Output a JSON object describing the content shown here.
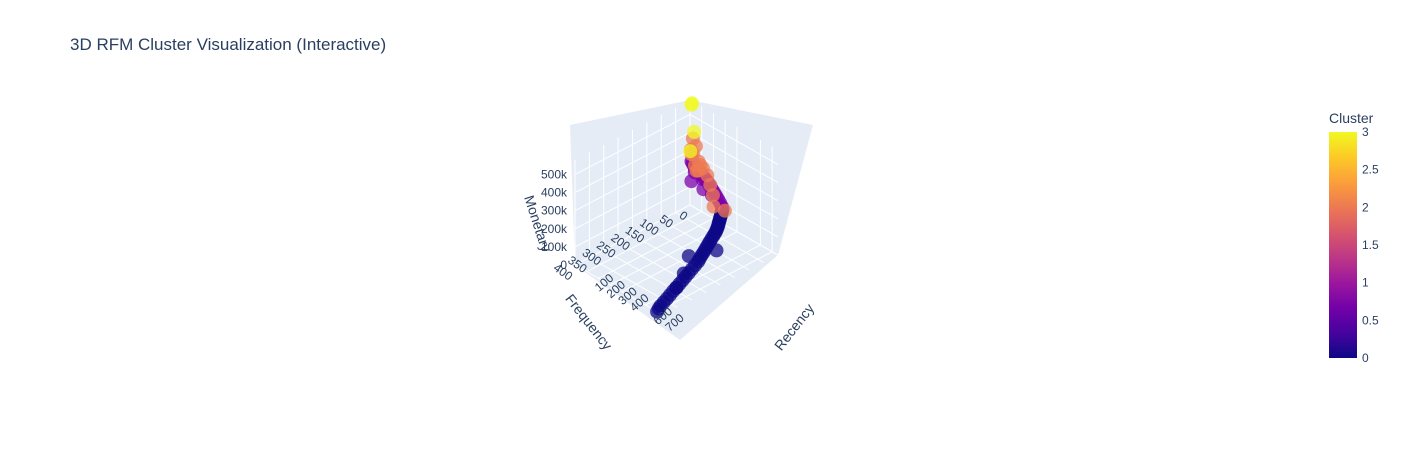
{
  "chart_data": {
    "type": "scatter",
    "title": "3D RFM Cluster Visualization (Interactive)",
    "axes": {
      "x": {
        "label": "Recency",
        "range": [
          0,
          750
        ],
        "ticks": [
          100,
          200,
          300,
          400,
          600,
          700
        ]
      },
      "y": {
        "label": "Frequency",
        "range": [
          0,
          400
        ],
        "ticks": [
          0,
          50,
          100,
          150,
          200,
          250,
          300,
          350,
          400
        ]
      },
      "z": {
        "label": "Monetary",
        "range": [
          0,
          580000
        ],
        "ticks": [
          0,
          100000,
          200000,
          300000,
          400000,
          500000
        ],
        "tick_labels": [
          "0",
          "100k",
          "200k",
          "300k",
          "400k",
          "500k"
        ]
      }
    },
    "colorbar": {
      "title": "Cluster",
      "range": [
        0,
        3
      ],
      "ticks": [
        "0",
        "0.5",
        "1",
        "1.5",
        "2",
        "2.5",
        "3"
      ],
      "colors": [
        "#0d0887",
        "#46039f",
        "#7201a8",
        "#9c179e",
        "#bd3786",
        "#d8576b",
        "#ed7953",
        "#fb9f3a",
        "#fdca26",
        "#f0f921"
      ]
    },
    "clusters": [
      {
        "cluster": 0,
        "color": "#0d0887",
        "points": [
          [
            700,
            400,
            0
          ],
          [
            690,
            390,
            5000
          ],
          [
            680,
            380,
            8000
          ],
          [
            670,
            365,
            12000
          ],
          [
            660,
            350,
            15000
          ],
          [
            650,
            335,
            20000
          ],
          [
            640,
            320,
            25000
          ],
          [
            630,
            305,
            28000
          ],
          [
            620,
            290,
            32000
          ],
          [
            610,
            275,
            36000
          ],
          [
            600,
            260,
            40000
          ],
          [
            590,
            245,
            45000
          ],
          [
            580,
            230,
            50000
          ],
          [
            570,
            215,
            55000
          ],
          [
            560,
            200,
            60000
          ],
          [
            550,
            190,
            65000
          ],
          [
            540,
            180,
            70000
          ],
          [
            530,
            170,
            72000
          ],
          [
            520,
            160,
            76000
          ],
          [
            510,
            150,
            80000
          ],
          [
            500,
            140,
            84000
          ],
          [
            490,
            130,
            88000
          ],
          [
            480,
            120,
            92000
          ],
          [
            470,
            110,
            95000
          ],
          [
            460,
            100,
            98000
          ],
          [
            450,
            92,
            100000
          ],
          [
            440,
            85,
            103000
          ],
          [
            430,
            78,
            106000
          ],
          [
            420,
            72,
            110000
          ],
          [
            410,
            66,
            112000
          ],
          [
            400,
            60,
            116000
          ],
          [
            390,
            54,
            118000
          ],
          [
            380,
            48,
            120000
          ],
          [
            370,
            42,
            124000
          ],
          [
            360,
            36,
            126000
          ],
          [
            350,
            30,
            130000
          ],
          [
            520,
            120,
            40000
          ],
          [
            480,
            200,
            60000
          ],
          [
            620,
            300,
            20000
          ],
          [
            560,
            250,
            35000
          ]
        ]
      },
      {
        "cluster": 1,
        "color": "#7e03a8",
        "points": [
          [
            340,
            28,
            140000
          ],
          [
            320,
            26,
            150000
          ],
          [
            300,
            24,
            160000
          ],
          [
            280,
            22,
            168000
          ],
          [
            260,
            20,
            175000
          ],
          [
            240,
            18,
            182000
          ],
          [
            220,
            16,
            190000
          ],
          [
            200,
            14,
            196000
          ],
          [
            180,
            12,
            204000
          ],
          [
            160,
            11,
            210000
          ],
          [
            140,
            10,
            215000
          ],
          [
            120,
            9,
            222000
          ],
          [
            100,
            8,
            228000
          ],
          [
            80,
            7,
            232000
          ],
          [
            60,
            6,
            238000
          ],
          [
            40,
            5,
            242000
          ],
          [
            30,
            4,
            248000
          ],
          [
            20,
            3,
            252000
          ],
          [
            110,
            40,
            205000
          ],
          [
            90,
            20,
            230000
          ],
          [
            70,
            12,
            236000
          ],
          [
            200,
            35,
            190000
          ],
          [
            150,
            18,
            214000
          ],
          [
            260,
            30,
            176000
          ]
        ]
      },
      {
        "cluster": 2,
        "color": "#ed7953",
        "points": [
          [
            30,
            2,
            380000
          ],
          [
            60,
            4,
            350000
          ],
          [
            40,
            6,
            300000
          ],
          [
            80,
            2,
            270000
          ],
          [
            120,
            4,
            250000
          ],
          [
            20,
            3,
            290000
          ],
          [
            90,
            8,
            230000
          ],
          [
            10,
            1,
            310000
          ],
          [
            180,
            3,
            180000
          ],
          [
            150,
            1,
            220000
          ],
          [
            250,
            20,
            100000
          ],
          [
            200,
            2,
            130000
          ],
          [
            300,
            1,
            80000
          ],
          [
            100,
            5,
            260000
          ],
          [
            50,
            3,
            240000
          ],
          [
            70,
            6,
            220000
          ]
        ]
      },
      {
        "cluster": 3,
        "color": "#f0f921",
        "points": [
          [
            20,
            1,
            570000
          ],
          [
            15,
            1,
            560000
          ],
          [
            40,
            2,
            420000
          ],
          [
            5,
            1,
            300000
          ]
        ]
      }
    ]
  }
}
